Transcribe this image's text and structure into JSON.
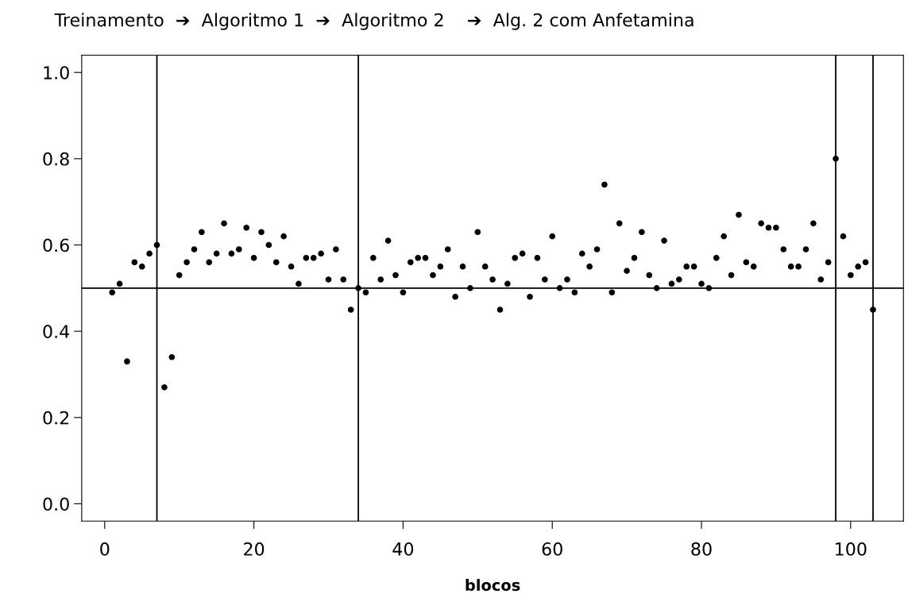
{
  "chart_data": {
    "type": "scatter",
    "title": "Treinamento  ➔  Algoritmo 1  ➔  Algoritmo 2    ➔  Alg. 2 com Anfetamina",
    "xlabel": "blocos",
    "x": [
      1,
      2,
      3,
      4,
      5,
      6,
      7,
      8,
      9,
      10,
      11,
      12,
      13,
      14,
      15,
      16,
      17,
      18,
      19,
      20,
      21,
      22,
      23,
      24,
      25,
      26,
      27,
      28,
      29,
      30,
      31,
      32,
      33,
      34,
      35,
      36,
      37,
      38,
      39,
      40,
      41,
      42,
      43,
      44,
      45,
      46,
      47,
      48,
      49,
      50,
      51,
      52,
      53,
      54,
      55,
      56,
      57,
      58,
      59,
      60,
      61,
      62,
      63,
      64,
      65,
      66,
      67,
      68,
      69,
      70,
      71,
      72,
      73,
      74,
      75,
      76,
      77,
      78,
      79,
      80,
      81,
      82,
      83,
      84,
      85,
      86,
      87,
      88,
      89,
      90,
      91,
      92,
      93,
      94,
      95,
      96,
      97,
      98,
      99,
      100,
      101,
      102,
      103
    ],
    "series": [
      {
        "color": "#000000",
        "values": [
          0.49,
          0.51,
          0.33,
          0.56,
          0.55,
          0.58,
          0.6,
          0.27,
          0.34,
          0.53,
          0.56,
          0.59,
          0.63,
          0.56,
          0.58,
          0.65,
          0.58,
          0.59,
          0.64,
          0.57,
          0.63,
          0.6,
          0.56,
          0.62,
          0.55,
          0.51,
          0.57,
          0.57,
          0.58,
          0.52,
          0.59,
          0.52,
          0.45,
          0.5,
          0.49,
          0.57,
          0.52,
          0.61,
          0.53,
          0.49,
          0.56,
          0.57,
          0.57,
          0.53,
          0.55,
          0.59,
          0.48,
          0.55,
          0.5,
          0.63,
          0.55,
          0.52,
          0.45,
          0.51,
          0.57,
          0.58,
          0.48,
          0.57,
          0.52,
          0.62,
          0.5,
          0.52,
          0.49,
          0.58,
          0.55,
          0.59,
          0.74,
          0.49,
          0.65,
          0.54,
          0.57,
          0.63,
          0.53,
          0.5,
          0.61,
          0.51,
          0.52,
          0.55,
          0.55,
          0.51,
          0.5,
          0.57,
          0.62,
          0.53,
          0.67,
          0.56,
          0.55,
          0.65,
          0.64,
          0.64,
          0.59,
          0.55,
          0.55,
          0.59,
          0.65,
          0.52,
          0.56,
          0.8,
          0.62,
          0.53,
          0.55,
          0.56,
          0.45
        ]
      }
    ],
    "xlim": [
      -3.08,
      107.08
    ],
    "ylim": [
      -0.04,
      1.04
    ],
    "xticks": [
      0,
      20,
      40,
      60,
      80,
      100
    ],
    "yticks": [
      {
        "value": 0,
        "label": "0.0"
      },
      {
        "value": 0.2,
        "label": "0.2"
      },
      {
        "value": 0.4,
        "label": "0.4"
      },
      {
        "value": 0.6,
        "label": "0.6"
      },
      {
        "value": 0.8,
        "label": "0.8"
      },
      {
        "value": 1,
        "label": "1.0"
      }
    ],
    "ref_lines": [
      {
        "axis": "x",
        "value": 7,
        "color": "#000000"
      },
      {
        "axis": "x",
        "value": 34,
        "color": "#000000"
      },
      {
        "axis": "x",
        "value": 98,
        "color": "#000000"
      },
      {
        "axis": "x",
        "value": 103,
        "color": "#000000"
      },
      {
        "axis": "y",
        "value": 0.5,
        "color": "#000000"
      }
    ],
    "marker": "circle",
    "grid": false,
    "legend": false
  }
}
